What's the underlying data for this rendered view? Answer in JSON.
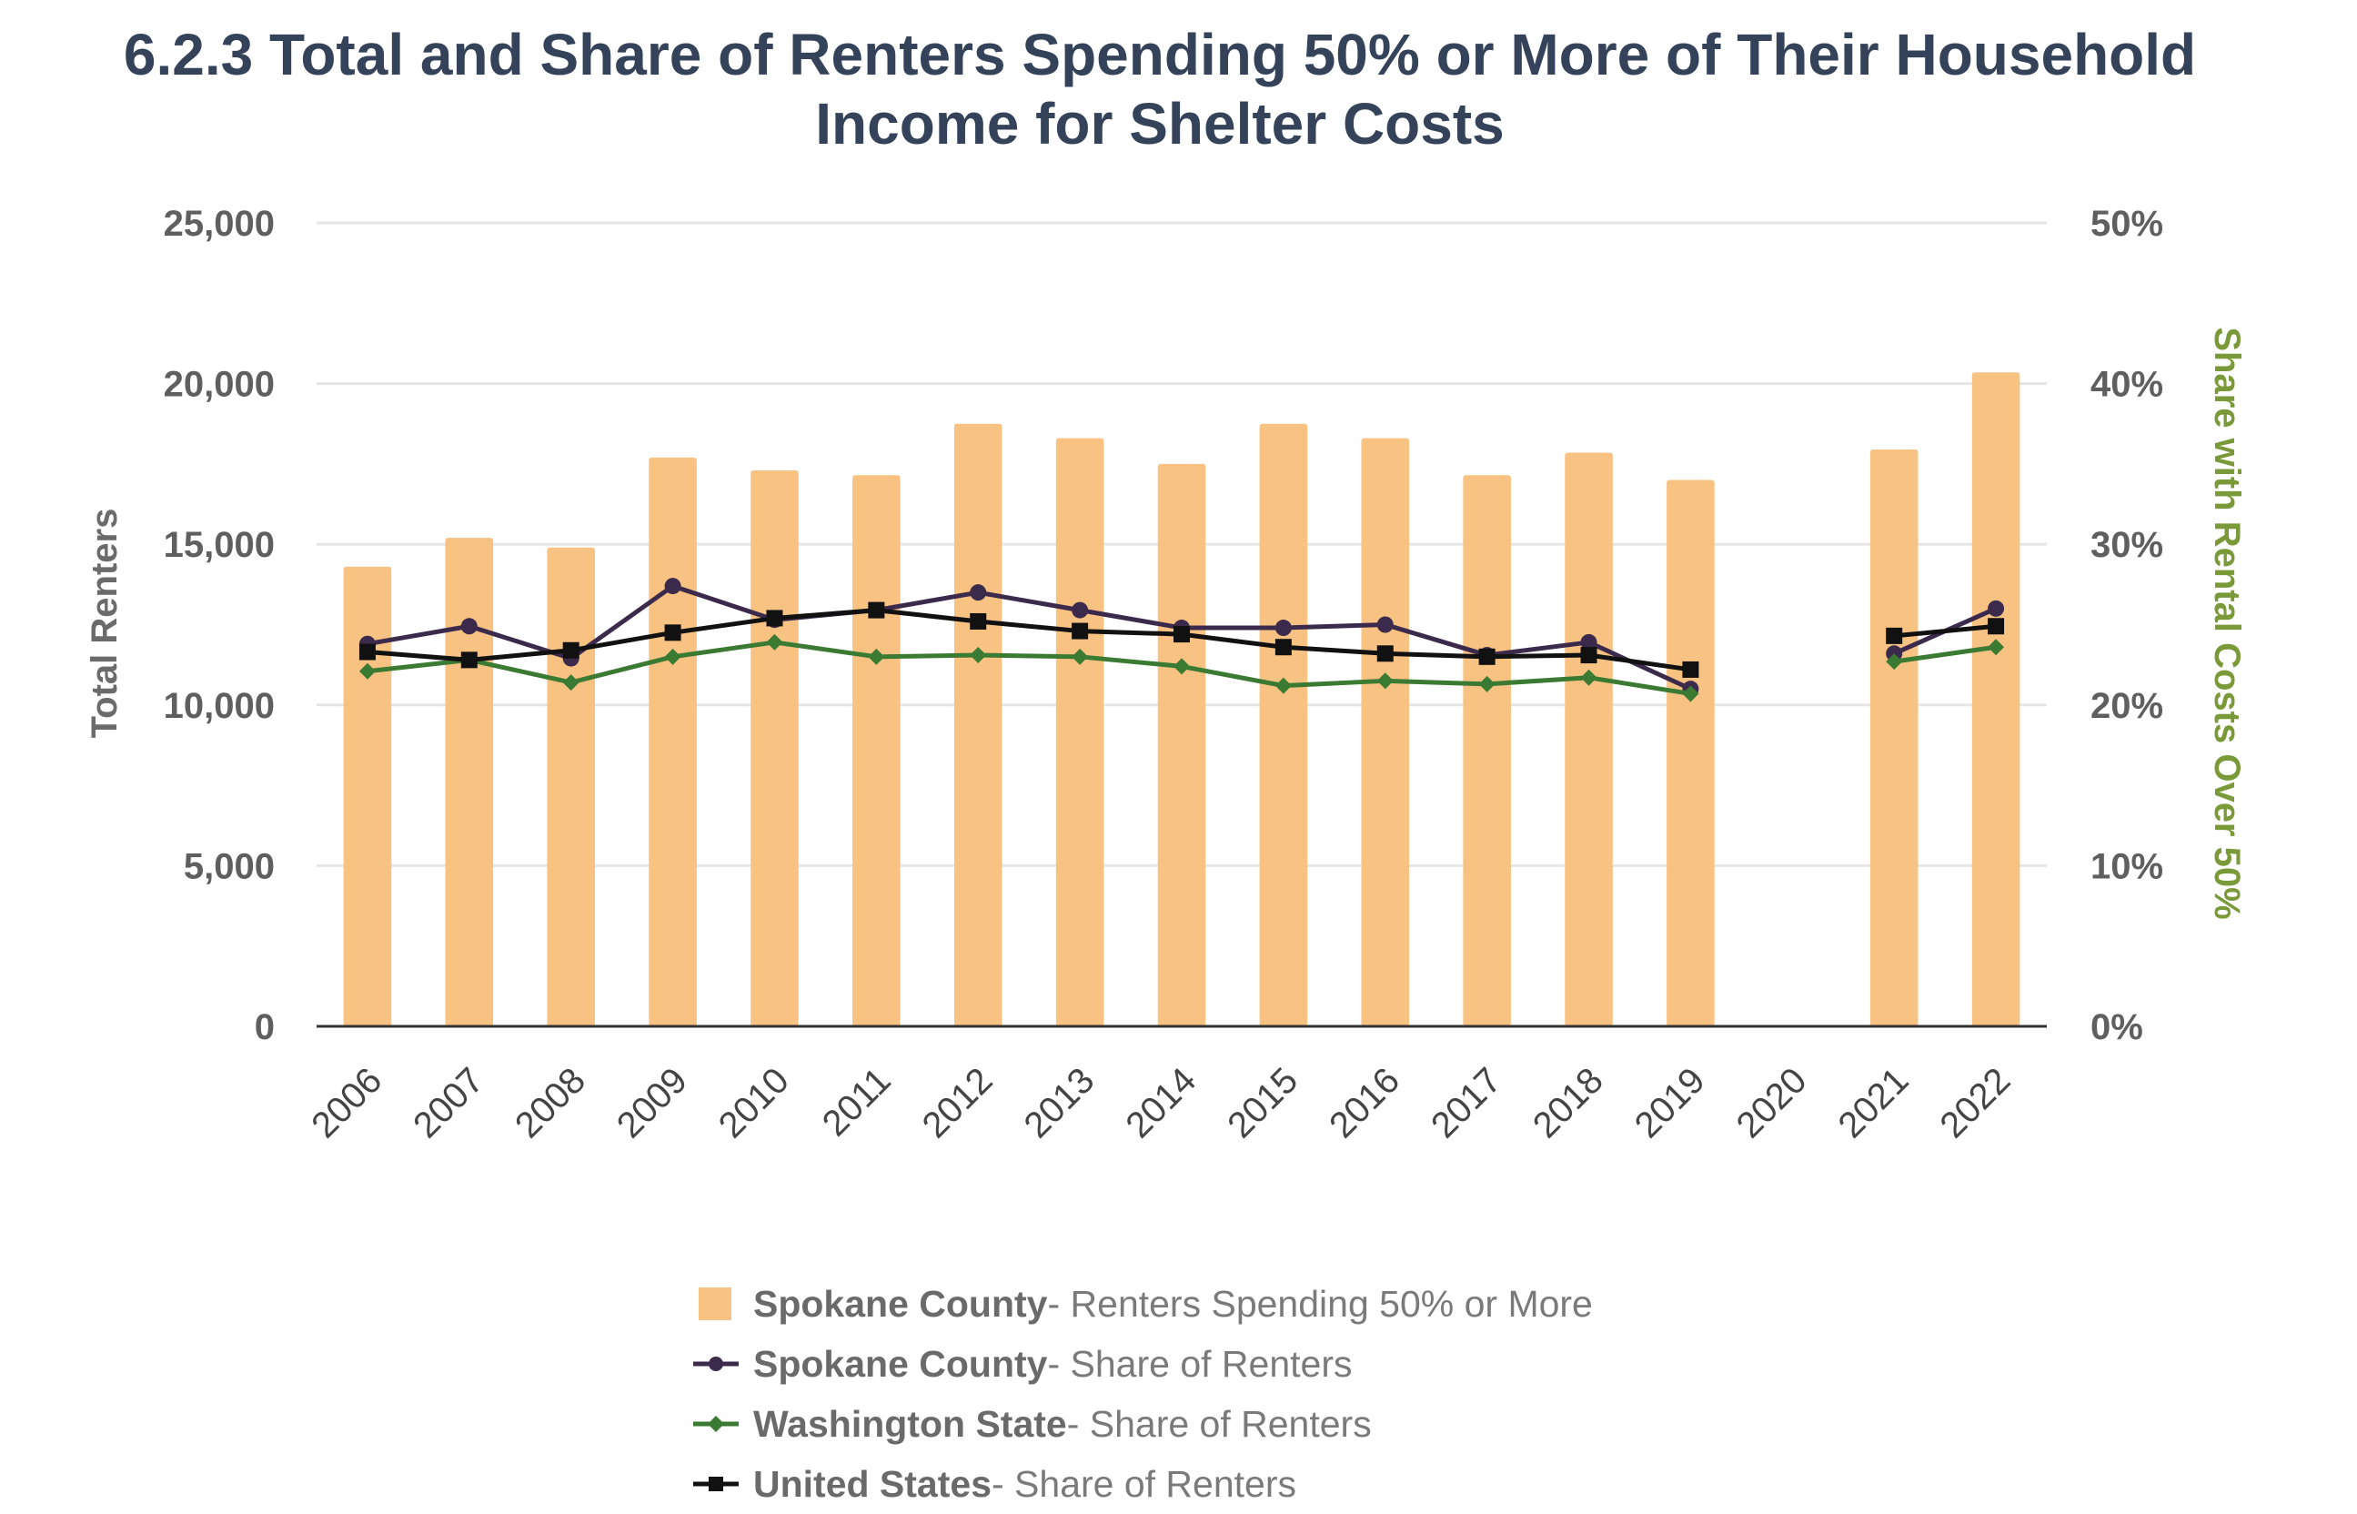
{
  "title_lines": [
    "6.2.3 Total and Share of Renters Spending 50% or More of Their Household",
    "Income for Shelter Costs"
  ],
  "colors": {
    "bar": "#f8c283",
    "spokane_share": "#3c2a4d",
    "washington_share": "#3a7a32",
    "us_share": "#111111",
    "left_axis_title": "#6b6b6b",
    "right_axis_title": "#7a9a3a",
    "grid": "#e6e6e6",
    "baseline": "#333333"
  },
  "legend": [
    {
      "symbol": "bar",
      "bold": "Spokane County",
      "rest": " - Renters Spending 50% or More"
    },
    {
      "symbol": "circle-line",
      "bold": "Spokane County",
      "rest": " - Share of Renters"
    },
    {
      "symbol": "diamond-line",
      "bold": "Washington State",
      "rest": " - Share of Renters"
    },
    {
      "symbol": "square-line",
      "bold": "United States",
      "rest": " - Share of Renters"
    }
  ],
  "chart_data": {
    "type": "bar",
    "title": "6.2.3 Total and Share of Renters Spending 50% or More of Their Household Income for Shelter Costs",
    "categories": [
      "2006",
      "2007",
      "2008",
      "2009",
      "2010",
      "2011",
      "2012",
      "2013",
      "2014",
      "2015",
      "2016",
      "2017",
      "2018",
      "2019",
      "2020",
      "2021",
      "2022"
    ],
    "ylabel": "Total Renters",
    "y2label": "Share with Rental Costs Over 50%",
    "ylim": [
      0,
      25000
    ],
    "y2lim": [
      0,
      50
    ],
    "yticks": [
      "0",
      "5,000",
      "10,000",
      "15,000",
      "20,000",
      "25,000"
    ],
    "y2ticks": [
      "0%",
      "10%",
      "20%",
      "30%",
      "40%",
      "50%"
    ],
    "grid": true,
    "legend_position": "bottom",
    "series": [
      {
        "name": "Spokane County - Renters Spending 50% or More",
        "kind": "bar",
        "axis": "left",
        "values": [
          14300,
          15200,
          14900,
          17700,
          17300,
          17150,
          18750,
          18300,
          17500,
          18750,
          18300,
          17150,
          17850,
          17000,
          null,
          17950,
          20350
        ]
      },
      {
        "name": "Spokane County - Share of Renters",
        "kind": "line",
        "marker": "circle",
        "axis": "right",
        "values": [
          23.8,
          24.9,
          22.9,
          27.4,
          25.3,
          25.9,
          27.0,
          25.9,
          24.8,
          24.8,
          25.0,
          23.1,
          23.9,
          21.0,
          null,
          23.2,
          26.0
        ]
      },
      {
        "name": "Washington State - Share of Renters",
        "kind": "line",
        "marker": "diamond",
        "axis": "right",
        "values": [
          22.1,
          22.8,
          21.4,
          23.0,
          23.9,
          23.0,
          23.1,
          23.0,
          22.4,
          21.2,
          21.5,
          21.3,
          21.7,
          20.7,
          null,
          22.7,
          23.6
        ]
      },
      {
        "name": "United States - Share of Renters",
        "kind": "line",
        "marker": "square",
        "axis": "right",
        "values": [
          23.3,
          22.8,
          23.4,
          24.5,
          25.4,
          25.9,
          25.2,
          24.6,
          24.4,
          23.6,
          23.2,
          23.0,
          23.1,
          22.2,
          null,
          24.3,
          24.9
        ]
      }
    ]
  }
}
